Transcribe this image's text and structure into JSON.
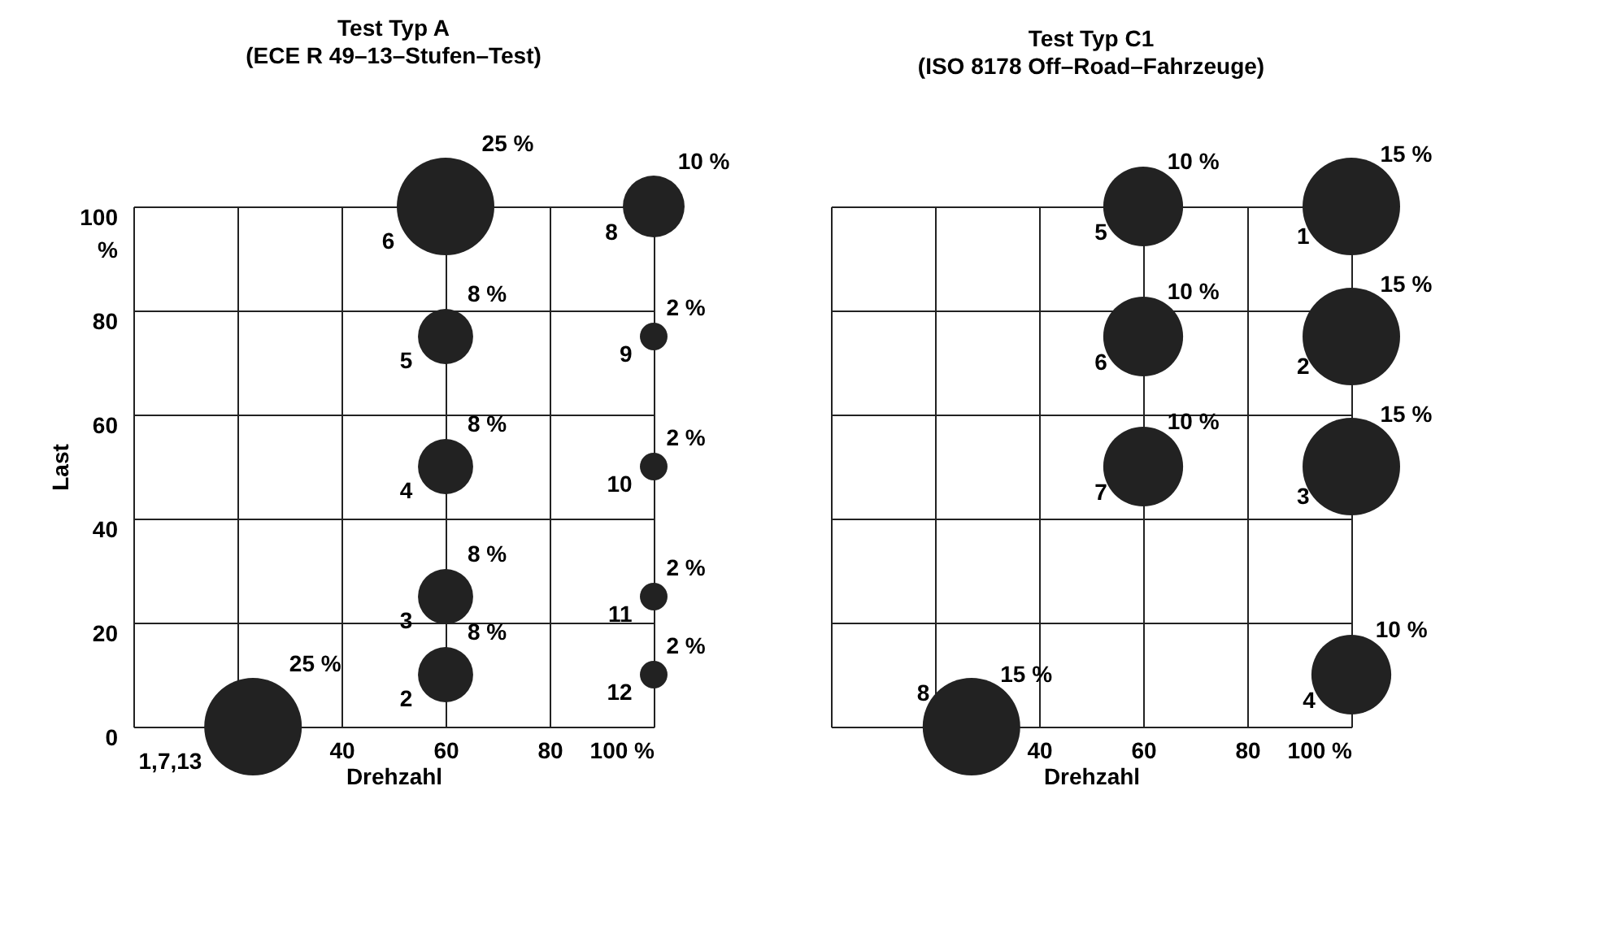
{
  "chart_data": [
    {
      "type": "bubble",
      "title": "Test Typ A",
      "subtitle": "(ECE R 49–13–Stufen–Test)",
      "xlabel": "Drehzahl",
      "ylabel": "Last",
      "xlim": [
        0,
        100
      ],
      "ylim": [
        0,
        100
      ],
      "xticks": [
        {
          "value": 0,
          "label": null
        },
        {
          "value": 20,
          "label": null
        },
        40,
        60,
        80,
        {
          "value": 100,
          "label": "100  %"
        }
      ],
      "yticks": [
        0,
        20,
        40,
        60,
        80,
        {
          "value": 100,
          "label": "100\n%"
        }
      ],
      "grid": true,
      "series": [
        {
          "color": "#222222",
          "x": [
            23,
            60,
            60,
            60,
            60,
            60,
            100,
            100,
            100,
            100,
            100
          ],
          "values": [
            0,
            10,
            25,
            50,
            75,
            100,
            100,
            75,
            50,
            25,
            10
          ],
          "sizes": [
            1,
            0.32,
            0.32,
            0.32,
            0.32,
            1,
            0.4,
            0.08,
            0.08,
            0.08,
            0.08
          ]
        }
      ],
      "annotations": [
        {
          "text": "1,7,13",
          "x": 23,
          "y": 0
        },
        {
          "text": "2",
          "x": 60,
          "y": 10
        },
        {
          "text": "3",
          "x": 60,
          "y": 25
        },
        {
          "text": "4",
          "x": 60,
          "y": 50
        },
        {
          "text": "5",
          "x": 60,
          "y": 75
        },
        {
          "text": "6",
          "x": 60,
          "y": 100
        },
        {
          "text": "8",
          "x": 100,
          "y": 100
        },
        {
          "text": "9",
          "x": 100,
          "y": 75
        },
        {
          "text": "10",
          "x": 100,
          "y": 50
        },
        {
          "text": "11",
          "x": 100,
          "y": 25
        },
        {
          "text": "12",
          "x": 100,
          "y": 10
        },
        {
          "text": "25 %",
          "x": 23,
          "y": 0
        },
        {
          "text": "8 %",
          "x": 60,
          "y": 10
        },
        {
          "text": "8 %",
          "x": 60,
          "y": 25
        },
        {
          "text": "8 %",
          "x": 60,
          "y": 50
        },
        {
          "text": "8 %",
          "x": 60,
          "y": 75
        },
        {
          "text": "25 %",
          "x": 60,
          "y": 100
        },
        {
          "text": "10 %",
          "x": 100,
          "y": 100
        },
        {
          "text": "2 %",
          "x": 100,
          "y": 75
        },
        {
          "text": "2 %",
          "x": 100,
          "y": 50
        },
        {
          "text": "2 %",
          "x": 100,
          "y": 25
        },
        {
          "text": "2 %",
          "x": 100,
          "y": 10
        }
      ]
    },
    {
      "type": "bubble",
      "title": "Test Typ C1",
      "subtitle": "(ISO 8178 Off–Road–Fahrzeuge)",
      "xlabel": "Drehzahl",
      "xlim": [
        0,
        100
      ],
      "ylim": [
        0,
        100
      ],
      "xticks": [
        {
          "value": 0,
          "label": null
        },
        {
          "value": 20,
          "label": null
        },
        40,
        60,
        80,
        {
          "value": 100,
          "label": "100  %"
        }
      ],
      "yticks": [
        0,
        20,
        40,
        60,
        80,
        100
      ],
      "tick_labels": "x",
      "grid": true,
      "series": [
        {
          "color": "#222222",
          "x": [
            100,
            100,
            100,
            100,
            60,
            60,
            60,
            27
          ],
          "values": [
            100,
            75,
            50,
            10,
            100,
            75,
            50,
            0
          ],
          "sizes": [
            1,
            1,
            1,
            0.67,
            0.67,
            0.67,
            0.67,
            1
          ]
        }
      ],
      "annotations": [
        {
          "text": "1",
          "x": 100,
          "y": 100
        },
        {
          "text": "2",
          "x": 100,
          "y": 75
        },
        {
          "text": "3",
          "x": 100,
          "y": 50
        },
        {
          "text": "4",
          "x": 100,
          "y": 10
        },
        {
          "text": "5",
          "x": 60,
          "y": 100
        },
        {
          "text": "6",
          "x": 60,
          "y": 75
        },
        {
          "text": "7",
          "x": 60,
          "y": 50
        },
        {
          "text": "8",
          "x": 27,
          "y": 0
        },
        {
          "text": "15 %",
          "x": 100,
          "y": 100
        },
        {
          "text": "15 %",
          "x": 100,
          "y": 75
        },
        {
          "text": "15 %",
          "x": 100,
          "y": 50
        },
        {
          "text": "10 %",
          "x": 100,
          "y": 10
        },
        {
          "text": "10 %",
          "x": 60,
          "y": 100
        },
        {
          "text": "10 %",
          "x": 60,
          "y": 75
        },
        {
          "text": "10 %",
          "x": 60,
          "y": 50
        },
        {
          "text": "15 %",
          "x": 27,
          "y": 0
        }
      ]
    }
  ]
}
